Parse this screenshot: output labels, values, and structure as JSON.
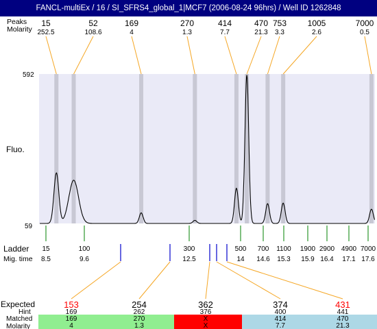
{
  "window_title": "FANCL-multiEx / 16 / SI_SFRS4_global_1|MCF7 (2006-08-24 96hrs) / Well ID 1262848",
  "labels": {
    "peaks_label": "Peaks",
    "molarity_label": "Molarity",
    "fluo_label": "Fluo.",
    "ladder_label": "Ladder",
    "migtime_label": "Mig. time",
    "expected_label": "Expected",
    "hint_label": "Hint",
    "matched_label": "Matched",
    "molarity_bottom_label": "Molarity"
  },
  "peaks": [
    {
      "size": "15",
      "molarity": "252.5"
    },
    {
      "size": "52",
      "molarity": "108.6"
    },
    {
      "size": "169",
      "molarity": "4"
    },
    {
      "size": "270",
      "molarity": "1.3"
    },
    {
      "size": "414",
      "molarity": "7.7"
    },
    {
      "size": "470",
      "molarity": "21.3"
    },
    {
      "size": "753",
      "molarity": "3.3"
    },
    {
      "size": "1005",
      "molarity": "2.6"
    },
    {
      "size": "7000",
      "molarity": "0.5"
    }
  ],
  "ladder": [
    {
      "size": "15",
      "time": "8.5"
    },
    {
      "size": "100",
      "time": "9.6"
    },
    {
      "size": "300",
      "time": "12.5"
    },
    {
      "size": "500",
      "time": "14"
    },
    {
      "size": "700",
      "time": "14.6"
    },
    {
      "size": "1100",
      "time": "15.3"
    },
    {
      "size": "1900",
      "time": "15.9"
    },
    {
      "size": "2900",
      "time": "16.4"
    },
    {
      "size": "4900",
      "time": "17.1"
    },
    {
      "size": "7000",
      "time": "17.6"
    }
  ],
  "expected": [
    {
      "value": "153",
      "hint": "169",
      "matched": "169",
      "molarity": "4",
      "highlight": true,
      "status": "matched"
    },
    {
      "value": "254",
      "hint": "262",
      "matched": "270",
      "molarity": "1.3",
      "highlight": false,
      "status": "matched"
    },
    {
      "value": "362",
      "hint": "376",
      "matched": "X",
      "molarity": "X",
      "highlight": false,
      "status": "missing"
    },
    {
      "value": "374",
      "hint": "400",
      "matched": "414",
      "molarity": "7.7",
      "highlight": false,
      "status": "alternate"
    },
    {
      "value": "431",
      "hint": "441",
      "matched": "470",
      "molarity": "21.3",
      "highlight": true,
      "status": "alternate"
    }
  ],
  "colors": {
    "title_bg": "#000080",
    "plot_bg": "#eaeaf7",
    "peak_band": "#c8c8d4",
    "connector": "#f5a623",
    "ladder_tick": "#008000",
    "matched_tick": "#0000cc",
    "highlight_text": "#ff0000",
    "matched_color": "#90ee90",
    "missing_color": "#ff0000",
    "alternate_color": "#add8e6"
  },
  "chart_data": {
    "type": "line",
    "ylim": [
      59,
      592
    ],
    "ylabel": "Fluo.",
    "yticks": [
      "592",
      "59"
    ],
    "xscale": "migration time (min)",
    "xlim": [
      8.0,
      17.7
    ],
    "baseline": 59,
    "peaks": [
      {
        "size": 15,
        "time": 8.5,
        "height": 240
      },
      {
        "size": 52,
        "time": 9.0,
        "height": 214
      },
      {
        "size": 169,
        "time": 10.95,
        "height": 97
      },
      {
        "size": 270,
        "time": 12.5,
        "height": 70
      },
      {
        "size": 414,
        "time": 13.7,
        "height": 185
      },
      {
        "size": 470,
        "time": 14.0,
        "height": 591
      },
      {
        "size": 753,
        "time": 14.6,
        "height": 130
      },
      {
        "size": 1005,
        "time": 15.05,
        "height": 132
      },
      {
        "size": 7000,
        "time": 17.6,
        "height": 110
      }
    ]
  }
}
